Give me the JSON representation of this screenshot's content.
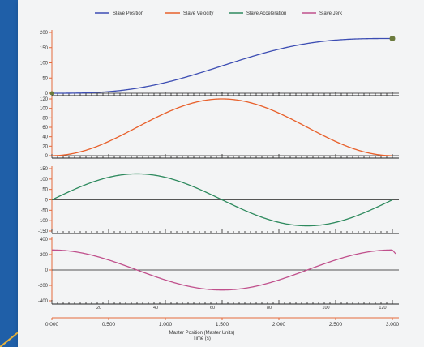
{
  "legend": {
    "placement": "top",
    "entries": [
      {
        "label": "Slave Position",
        "color": "#3c4db3"
      },
      {
        "label": "Slave Velocity",
        "color": "#e8602b"
      },
      {
        "label": "Slave Acceleration",
        "color": "#2e8a5e"
      },
      {
        "label": "Slave Jerk",
        "color": "#c0508c"
      }
    ]
  },
  "chart_data": [
    {
      "type": "line",
      "series": [
        {
          "name": "Slave Position",
          "color": "#3c4db3",
          "function": "position",
          "amplitude": 180
        }
      ],
      "xlim": [
        0,
        3
      ],
      "ylim": [
        0,
        200
      ],
      "yticks": [
        0,
        50,
        100,
        150,
        200
      ],
      "ytick_labels": [
        "0",
        "50",
        "100",
        "150",
        "200"
      ],
      "grid": false
    },
    {
      "type": "line",
      "series": [
        {
          "name": "Slave Velocity",
          "color": "#e8602b",
          "function": "velocity",
          "amplitude": 120
        }
      ],
      "xlim": [
        0,
        3
      ],
      "ylim": [
        0,
        120
      ],
      "yticks": [
        0,
        20,
        40,
        60,
        80,
        100,
        120
      ],
      "ytick_labels": [
        "0",
        "20",
        "40",
        "60",
        "80",
        "100",
        "120"
      ],
      "grid": false
    },
    {
      "type": "line",
      "series": [
        {
          "name": "Slave Acceleration",
          "color": "#2e8a5e",
          "function": "acceleration",
          "amplitude": 125
        }
      ],
      "xlim": [
        0,
        3
      ],
      "ylim": [
        -150,
        150
      ],
      "yticks": [
        -150,
        -100,
        -50,
        0,
        50,
        100,
        150
      ],
      "ytick_labels": [
        "-150",
        "-100",
        "-50",
        "0",
        "50",
        "100",
        "150"
      ],
      "grid": false
    },
    {
      "type": "line",
      "series": [
        {
          "name": "Slave Jerk",
          "color": "#c0508c",
          "function": "jerk",
          "amplitude": 260
        }
      ],
      "xlim": [
        0,
        3
      ],
      "ylim": [
        -400,
        400
      ],
      "yticks": [
        -400,
        -200,
        0,
        200,
        400
      ],
      "ytick_labels": [
        "-400",
        "-200",
        "0",
        "200",
        "400"
      ],
      "grid": false
    }
  ],
  "x_axis": {
    "time_ticks": [
      0,
      0.5,
      1.0,
      1.5,
      2.0,
      2.5,
      3.0
    ],
    "time_tick_labels": [
      "0.000",
      "0.500",
      "1.000",
      "1.500",
      "2.000",
      "2.500",
      "3.000"
    ],
    "master_ticks": [
      0.5,
      1.0,
      1.5,
      2.0,
      2.5,
      3.0
    ],
    "master_tick_labels": [
      "20",
      "40",
      "60",
      "80",
      "100",
      "120"
    ],
    "label_master": "Master Position (Master Units)",
    "label_time": "Time (s)"
  },
  "colors": {
    "axis": "#e46a3c",
    "baseline": "#555555",
    "end_marker": "#6b7a3d",
    "background_band": "#1f5fa8",
    "accent_line": "#e8b23a"
  }
}
